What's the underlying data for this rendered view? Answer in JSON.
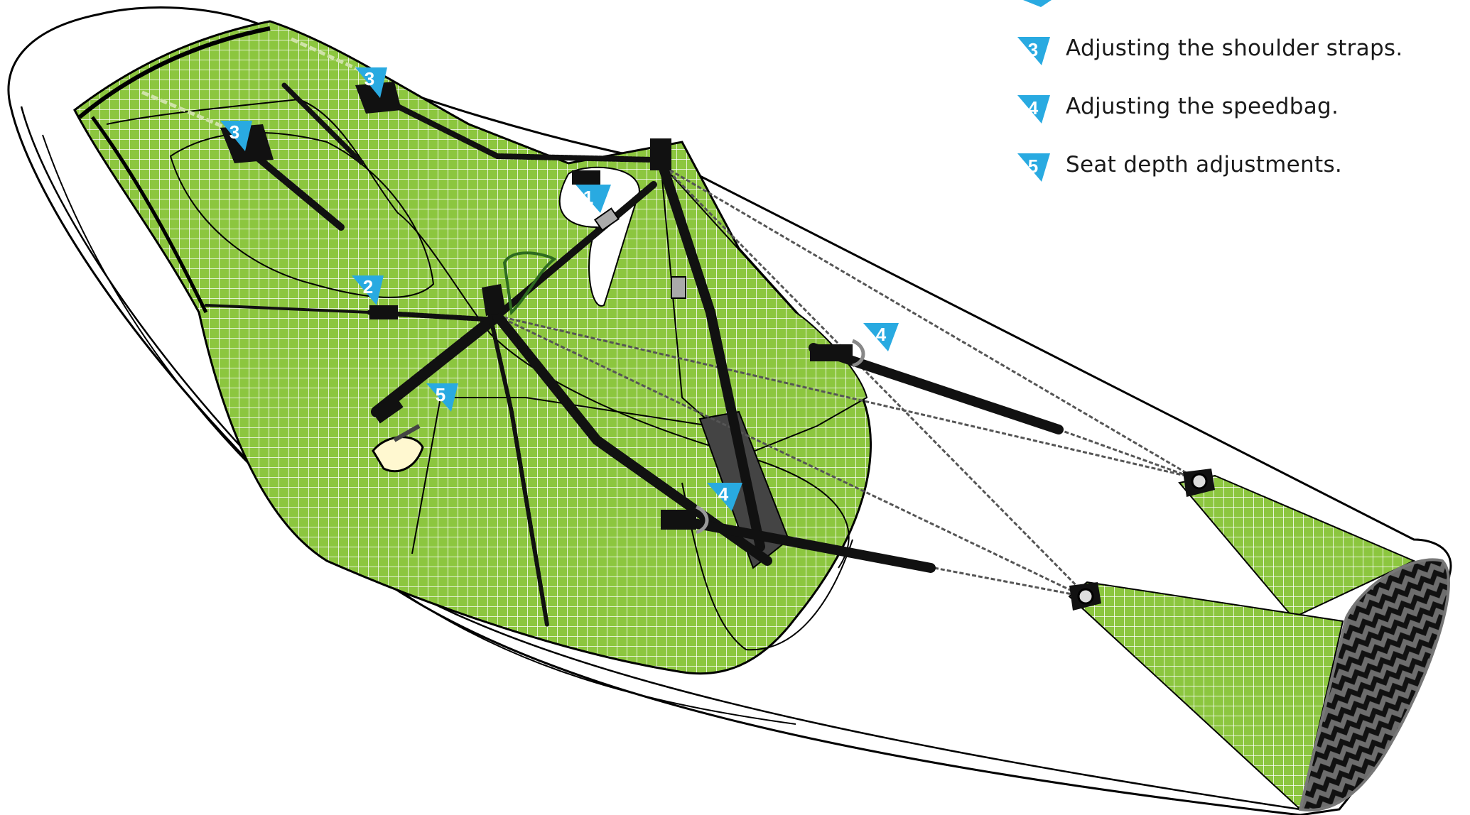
{
  "legend": [
    {
      "number": "3",
      "text": "Adjusting the shoulder straps."
    },
    {
      "number": "4",
      "text": "Adjusting the speedbag."
    },
    {
      "number": "5",
      "text": "Seat depth adjustments."
    }
  ],
  "markers": {
    "m1": "1",
    "m2": "2",
    "m3a": "3",
    "m3b": "3",
    "m4a": "4",
    "m4b": "4",
    "m5": "5"
  },
  "colors": {
    "mesh_green": "#8cc63f",
    "mesh_grid": "#ffffff",
    "strap": "#111111",
    "outline": "#000000",
    "marker_blue": "#29aae1",
    "speedbag_fill": "#ffffff",
    "carbon_dark": "#1a1a1a",
    "carbon_light": "#6d6d6d",
    "dark_panel": "#444444"
  },
  "icons": {
    "marker": "numbered-triangle-marker-icon",
    "buckle": "buckle-icon",
    "ring": "ring-icon",
    "carbon_plate": "carbon-plate-icon"
  }
}
